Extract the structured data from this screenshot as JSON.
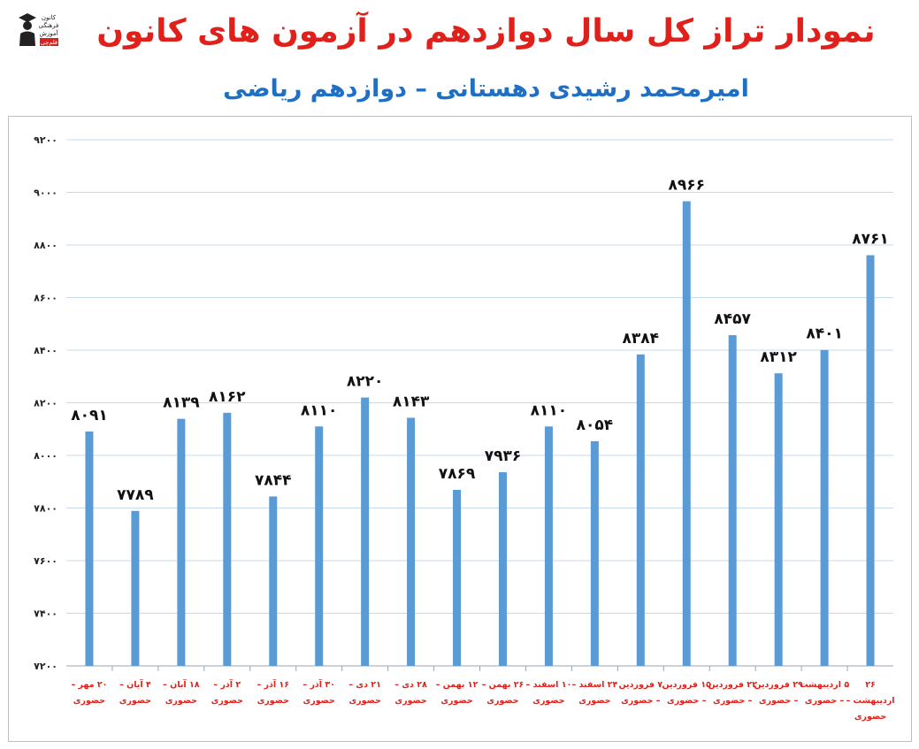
{
  "header": {
    "title": "نمودار تراز کل سال دوازدهم در آزمون های کانون",
    "subtitle": "امیرمحمد رشیدی دهستانی – دوازدهم ریاضی",
    "logo_lines": [
      "کانون",
      "فرهنگی",
      "آموزش",
      "قلم‌چی"
    ]
  },
  "chart_data": {
    "type": "bar",
    "title": "نمودار تراز کل سال دوازدهم در آزمون های کانون",
    "subtitle": "امیرمحمد رشیدی دهستانی – دوازدهم ریاضی",
    "categories": [
      [
        "۲۰ مهر –",
        "حضوری"
      ],
      [
        "۴ آبان –",
        "حضوری"
      ],
      [
        "۱۸ آبان –",
        "حضوری"
      ],
      [
        "۲ آذر –",
        "حضوری"
      ],
      [
        "۱۶ آذر –",
        "حضوری"
      ],
      [
        "۳۰ آذر –",
        "حضوری"
      ],
      [
        "۲۱ دی –",
        "حضوری"
      ],
      [
        "۲۸ دی –",
        "حضوری"
      ],
      [
        "۱۲ بهمن –",
        "حضوری"
      ],
      [
        "۲۶ بهمن –",
        "حضوری"
      ],
      [
        "۱۰ اسفند –",
        "حضوری"
      ],
      [
        "۲۴ اسفند –",
        "حضوری"
      ],
      [
        "۷ فروردین",
        "– حضوری"
      ],
      [
        "۱۵ فروردین",
        "– حضوری"
      ],
      [
        "۲۲ فروردین",
        "– حضوری"
      ],
      [
        "۲۹ فروردین",
        "– حضوری"
      ],
      [
        "۵ اردیبهشت",
        "– حضوری"
      ],
      [
        "۲۶",
        "اردیبهشت –",
        "حضوری"
      ]
    ],
    "values": [
      8091,
      7789,
      8139,
      8162,
      7844,
      8110,
      8220,
      8143,
      7869,
      7936,
      8110,
      8054,
      8384,
      8966,
      8457,
      8312,
      8401,
      8761
    ],
    "value_labels": [
      "۸۰۹۱",
      "۷۷۸۹",
      "۸۱۳۹",
      "۸۱۶۲",
      "۷۸۴۴",
      "۸۱۱۰",
      "۸۲۲۰",
      "۸۱۴۳",
      "۷۸۶۹",
      "۷۹۳۶",
      "۸۱۱۰",
      "۸۰۵۴",
      "۸۳۸۴",
      "۸۹۶۶",
      "۸۴۵۷",
      "۸۳۱۲",
      "۸۴۰۱",
      "۸۷۶۱"
    ],
    "ylim": [
      7200,
      9200
    ],
    "yticks": [
      7200,
      7400,
      7600,
      7800,
      8000,
      8200,
      8400,
      8600,
      8800,
      9000,
      9200
    ],
    "ytick_labels": [
      "۷۲۰۰",
      "۷۴۰۰",
      "۷۶۰۰",
      "۷۸۰۰",
      "۸۰۰۰",
      "۸۲۰۰",
      "۸۴۰۰",
      "۸۶۰۰",
      "۸۸۰۰",
      "۹۰۰۰",
      "۹۲۰۰"
    ],
    "grid": true,
    "legend": "none",
    "colors": {
      "bar": "#5b9bd5",
      "grid": "#c9d9ec",
      "category_text": "#e0201a"
    }
  }
}
